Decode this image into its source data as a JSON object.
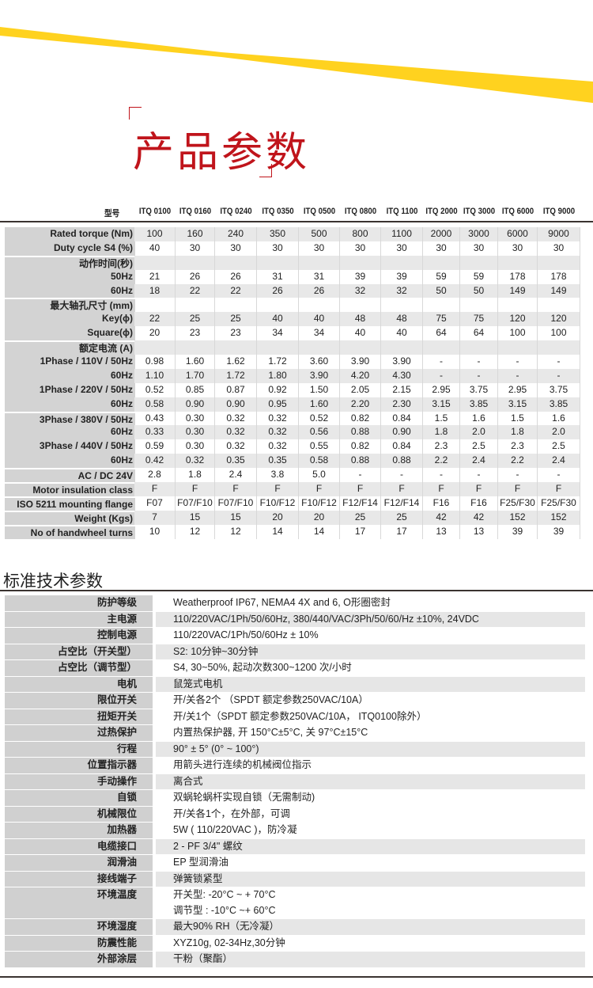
{
  "colors": {
    "accent_yellow": "#ffd21f",
    "title_red": "#c0141b",
    "label_gray": "#d3d3d3",
    "rule": "#3a3330"
  },
  "title": "产品参数",
  "spec_table": {
    "header_label": "型号",
    "models": [
      "ITQ 0100",
      "ITQ 0160",
      "ITQ 0240",
      "ITQ 0350",
      "ITQ 0500",
      "ITQ 0800",
      "ITQ 1100",
      "ITQ 2000",
      "ITQ 3000",
      "ITQ 6000",
      "ITQ 9000"
    ],
    "rows": [
      {
        "label": "Rated torque (Nm)",
        "values": [
          "100",
          "160",
          "240",
          "350",
          "500",
          "800",
          "1100",
          "2000",
          "3000",
          "6000",
          "9000"
        ]
      },
      {
        "label": "Duty cycle S4 (%)",
        "values": [
          "40",
          "30",
          "30",
          "30",
          "30",
          "30",
          "30",
          "30",
          "30",
          "30",
          "30"
        ]
      },
      {
        "label": "动作时间(秒)",
        "values": [
          "",
          "",
          "",
          "",
          "",
          "",
          "",
          "",
          "",
          "",
          ""
        ]
      },
      {
        "label": "50Hz",
        "values": [
          "21",
          "26",
          "26",
          "31",
          "31",
          "39",
          "39",
          "59",
          "59",
          "178",
          "178"
        ]
      },
      {
        "label": "60Hz",
        "values": [
          "18",
          "22",
          "22",
          "26",
          "26",
          "32",
          "32",
          "50",
          "50",
          "149",
          "149"
        ]
      },
      {
        "label": "最大轴孔尺寸 (mm)",
        "values": [
          "",
          "",
          "",
          "",
          "",
          "",
          "",
          "",
          "",
          "",
          ""
        ]
      },
      {
        "label": "Key(ϕ)",
        "values": [
          "22",
          "25",
          "25",
          "40",
          "40",
          "48",
          "48",
          "75",
          "75",
          "120",
          "120"
        ]
      },
      {
        "label": "Square(ϕ)",
        "values": [
          "20",
          "23",
          "23",
          "34",
          "34",
          "40",
          "40",
          "64",
          "64",
          "100",
          "100"
        ]
      },
      {
        "label": "额定电流 (A)",
        "values": [
          "",
          "",
          "",
          "",
          "",
          "",
          "",
          "",
          "",
          "",
          ""
        ]
      },
      {
        "label": "1Phase / 110V / 50Hz",
        "values": [
          "0.98",
          "1.60",
          "1.62",
          "1.72",
          "3.60",
          "3.90",
          "3.90",
          "-",
          "-",
          "-",
          "-"
        ]
      },
      {
        "label": "60Hz",
        "values": [
          "1.10",
          "1.70",
          "1.72",
          "1.80",
          "3.90",
          "4.20",
          "4.30",
          "-",
          "-",
          "-",
          "-"
        ]
      },
      {
        "label": "1Phase / 220V / 50Hz",
        "values": [
          "0.52",
          "0.85",
          "0.87",
          "0.92",
          "1.50",
          "2.05",
          "2.15",
          "2.95",
          "3.75",
          "2.95",
          "3.75"
        ]
      },
      {
        "label": "60Hz",
        "values": [
          "0.58",
          "0.90",
          "0.90",
          "0.95",
          "1.60",
          "2.20",
          "2.30",
          "3.15",
          "3.85",
          "3.15",
          "3.85"
        ]
      },
      {
        "label": "3Phase / 380V / 50Hz",
        "values": [
          "0.43",
          "0.30",
          "0.32",
          "0.32",
          "0.52",
          "0.82",
          "0.84",
          "1.5",
          "1.6",
          "1.5",
          "1.6"
        ]
      },
      {
        "label": "60Hz",
        "values": [
          "0.33",
          "0.30",
          "0.32",
          "0.32",
          "0.56",
          "0.88",
          "0.90",
          "1.8",
          "2.0",
          "1.8",
          "2.0"
        ]
      },
      {
        "label": "3Phase / 440V / 50Hz",
        "values": [
          "0.59",
          "0.30",
          "0.32",
          "0.32",
          "0.55",
          "0.82",
          "0.84",
          "2.3",
          "2.5",
          "2.3",
          "2.5"
        ]
      },
      {
        "label": "60Hz",
        "values": [
          "0.42",
          "0.32",
          "0.35",
          "0.35",
          "0.58",
          "0.88",
          "0.88",
          "2.2",
          "2.4",
          "2.2",
          "2.4"
        ]
      },
      {
        "label": "AC / DC 24V",
        "values": [
          "2.8",
          "1.8",
          "2.4",
          "3.8",
          "5.0",
          "-",
          "-",
          "-",
          "-",
          "-",
          "-"
        ]
      },
      {
        "label": "Motor insulation class",
        "values": [
          "F",
          "F",
          "F",
          "F",
          "F",
          "F",
          "F",
          "F",
          "F",
          "F",
          "F"
        ]
      },
      {
        "label": "ISO 5211 mounting flange",
        "values": [
          "F07",
          "F07/F10",
          "F07/F10",
          "F10/F12",
          "F10/F12",
          "F12/F14",
          "F12/F14",
          "F16",
          "F16",
          "F25/F30",
          "F25/F30"
        ]
      },
      {
        "label": "Weight (Kgs)",
        "values": [
          "7",
          "15",
          "15",
          "20",
          "20",
          "25",
          "25",
          "42",
          "42",
          "152",
          "152"
        ]
      },
      {
        "label": "No of handwheel turns",
        "values": [
          "10",
          "12",
          "12",
          "14",
          "14",
          "17",
          "17",
          "13",
          "13",
          "39",
          "39"
        ]
      }
    ]
  },
  "standard": {
    "title": "标准技术参数",
    "rows": [
      {
        "label": "防护等级",
        "lines": [
          "Weatherproof IP67, NEMA4 4X and 6, O形圈密封"
        ]
      },
      {
        "label": "主电源",
        "lines": [
          "110/220VAC/1Ph/50/60Hz, 380/440/VAC/3Ph/50/60/Hz ±10%, 24VDC"
        ]
      },
      {
        "label": "控制电源",
        "lines": [
          "110/220VAC/1Ph/50/60Hz ± 10%"
        ]
      },
      {
        "label": "占空比（开关型）",
        "lines": [
          "S2: 10分钟~30分钟"
        ]
      },
      {
        "label": "占空比（调节型）",
        "lines": [
          "S4, 30~50%, 起动次数300~1200 次/小时"
        ]
      },
      {
        "label": "电机",
        "lines": [
          "鼠笼式电机"
        ]
      },
      {
        "label": "限位开关",
        "lines": [
          "开/关各2个 （SPDT 额定参数250VAC/10A）"
        ]
      },
      {
        "label": "扭矩开关",
        "lines": [
          "开/关1个（SPDT 额定参数250VAC/10A， ITQ0100除外）"
        ]
      },
      {
        "label": "过热保护",
        "lines": [
          "内置热保护器, 开 150°C±5°C, 关 97°C±15°C"
        ]
      },
      {
        "label": "行程",
        "lines": [
          "90° ± 5° (0° ~ 100°)"
        ]
      },
      {
        "label": "位置指示器",
        "lines": [
          "用箭头进行连续的机械阀位指示"
        ]
      },
      {
        "label": "手动操作",
        "lines": [
          "离合式"
        ]
      },
      {
        "label": "自锁",
        "lines": [
          "双蜗轮蜗杆实现自锁（无需制动)"
        ]
      },
      {
        "label": "机械限位",
        "lines": [
          "开/关各1个，在外部，可调"
        ]
      },
      {
        "label": "加热器",
        "lines": [
          "5W ( 110/220VAC )，防冷凝"
        ]
      },
      {
        "label": "电缆接口",
        "lines": [
          "2 - PF 3/4\" 螺纹"
        ]
      },
      {
        "label": "润滑油",
        "lines": [
          "EP 型润滑油"
        ]
      },
      {
        "label": "接线端子",
        "lines": [
          "弹簧锁紧型"
        ]
      },
      {
        "label": "环境温度",
        "lines": [
          "开关型: -20°C ~ + 70°C",
          "调节型 : -10°C ~+ 60°C"
        ]
      },
      {
        "label": "环境湿度",
        "lines": [
          "最大90% RH（无冷凝）"
        ]
      },
      {
        "label": "防震性能",
        "lines": [
          "XYZ10g, 02-34Hz,30分钟"
        ]
      },
      {
        "label": "外部涂层",
        "lines": [
          "干粉（聚酯）"
        ]
      }
    ]
  }
}
